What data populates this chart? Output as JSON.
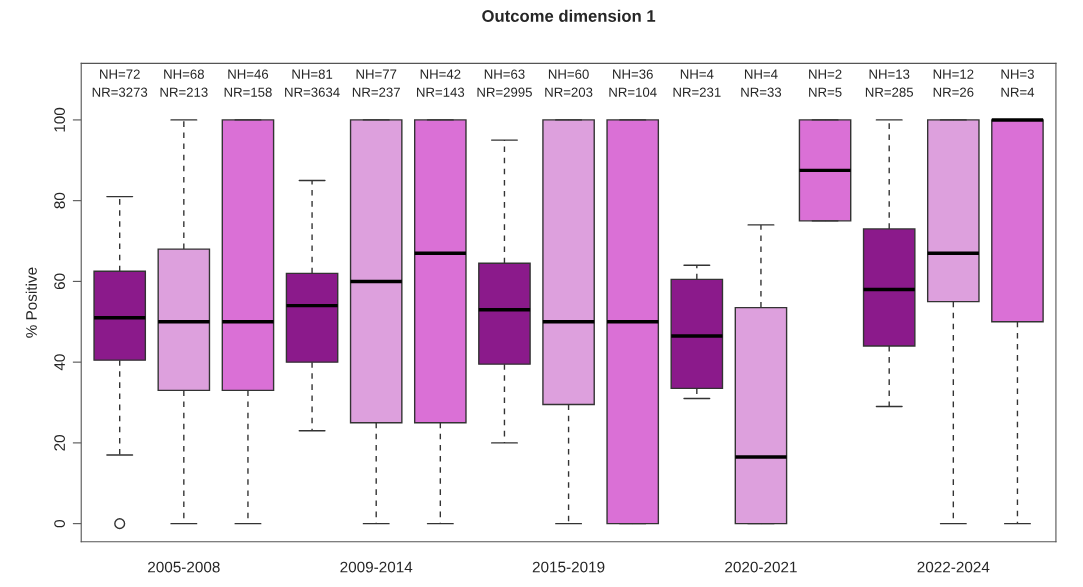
{
  "chart_data": {
    "type": "box",
    "title": "Outcome dimension 1",
    "ylabel": "% Positive",
    "categories": [
      null,
      "2005-2008",
      null,
      null,
      "2009-2014",
      null,
      null,
      "2015-2019",
      null,
      null,
      "2020-2021",
      null,
      null,
      "2022-2024",
      null
    ],
    "boxes": [
      {
        "low": 17,
        "q1": 40.5,
        "median": 51,
        "q3": 62.5,
        "high": 81,
        "outliers": [
          0
        ]
      },
      {
        "low": 0,
        "q1": 33,
        "median": 50,
        "q3": 68,
        "high": 100
      },
      {
        "low": 0,
        "q1": 33,
        "median": 50,
        "q3": 100,
        "high": 100
      },
      {
        "low": 23,
        "q1": 40,
        "median": 54,
        "q3": 62,
        "high": 85
      },
      {
        "low": 0,
        "q1": 25,
        "median": 60,
        "q3": 100,
        "high": 100
      },
      {
        "low": 0,
        "q1": 25,
        "median": 67,
        "q3": 100,
        "high": 100
      },
      {
        "low": 20,
        "q1": 39.5,
        "median": 53,
        "q3": 64.5,
        "high": 95
      },
      {
        "low": 0,
        "q1": 29.5,
        "median": 50,
        "q3": 100,
        "high": 100
      },
      {
        "low": 0,
        "q1": 0,
        "median": 50,
        "q3": 100,
        "high": 100
      },
      {
        "low": 31,
        "q1": 33.5,
        "median": 46.5,
        "q3": 60.5,
        "high": 64
      },
      {
        "low": 0,
        "q1": 0,
        "median": 16.5,
        "q3": 53.5,
        "high": 74
      },
      {
        "low": 75,
        "q1": 75,
        "median": 87.5,
        "q3": 100,
        "high": 100
      },
      {
        "low": 29,
        "q1": 44,
        "median": 58,
        "q3": 73,
        "high": 100
      },
      {
        "low": 0,
        "q1": 55,
        "median": 67,
        "q3": 100,
        "high": 100
      },
      {
        "low": 0,
        "q1": 50,
        "median": 100,
        "q3": 100,
        "high": 100
      }
    ],
    "colors": [
      "#8b1a8b",
      "#dda0dd",
      "#da70d6",
      "#8b1a8b",
      "#dda0dd",
      "#da70d6",
      "#8b1a8b",
      "#dda0dd",
      "#da70d6",
      "#8b1a8b",
      "#dda0dd",
      "#da70d6",
      "#8b1a8b",
      "#dda0dd",
      "#da70d6"
    ],
    "annotations": [
      "NH=72\nNR=3273",
      "NH=68\nNR=213",
      "NH=46\nNR=158",
      "NH=81\nNR=3634",
      "NH=77\nNR=237",
      "NH=42\nNR=143",
      "NH=63\nNR=2995",
      "NH=60\nNR=203",
      "NH=36\nNR=104",
      "NH=4\nNR=231",
      "NH=4\nNR=33",
      "NH=2\nNR=5",
      "NH=13\nNR=285",
      "NH=12\nNR=26",
      "NH=3\nNR=4"
    ],
    "ylim": [
      -4.5,
      114
    ],
    "yticks": [
      0,
      20,
      40,
      60,
      80,
      100
    ],
    "grid": false
  }
}
